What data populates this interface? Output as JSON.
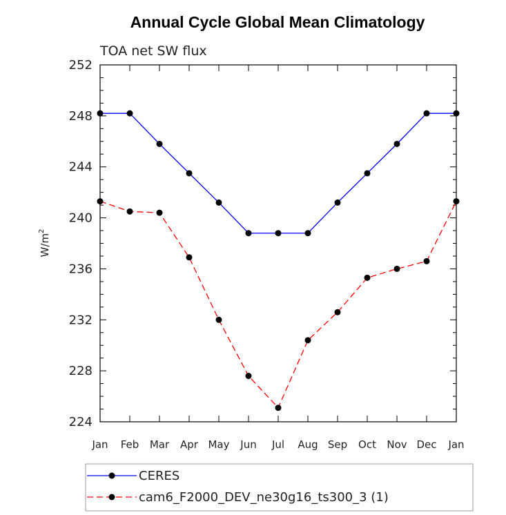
{
  "chart_data": {
    "type": "line",
    "title": "Annual Cycle Global Mean Climatology",
    "subtitle": "TOA net SW flux",
    "ylabel_base": "W/m",
    "ylabel_sup": "2",
    "xlabel": "",
    "categories": [
      "Jan",
      "Feb",
      "Mar",
      "Apr",
      "May",
      "Jun",
      "Jul",
      "Aug",
      "Sep",
      "Oct",
      "Nov",
      "Dec",
      "Jan"
    ],
    "ylim": [
      224,
      252
    ],
    "yticks": [
      "224",
      "228",
      "232",
      "236",
      "240",
      "244",
      "248",
      "252"
    ],
    "series": [
      {
        "name": "CERES",
        "color": "#0000ff",
        "dash": "solid",
        "values": [
          248.2,
          248.2,
          245.8,
          243.5,
          241.2,
          238.8,
          238.8,
          238.8,
          241.2,
          243.5,
          245.8,
          248.2,
          248.2
        ]
      },
      {
        "name": "cam6_F2000_DEV_ne30g16_ts300_3 (1)",
        "color": "#ff0000",
        "dash": "dashed",
        "values": [
          241.3,
          240.5,
          240.4,
          236.9,
          232.0,
          227.6,
          225.1,
          230.4,
          232.6,
          235.3,
          236.0,
          236.6,
          241.3
        ]
      }
    ],
    "legend_position": "bottom-left"
  }
}
